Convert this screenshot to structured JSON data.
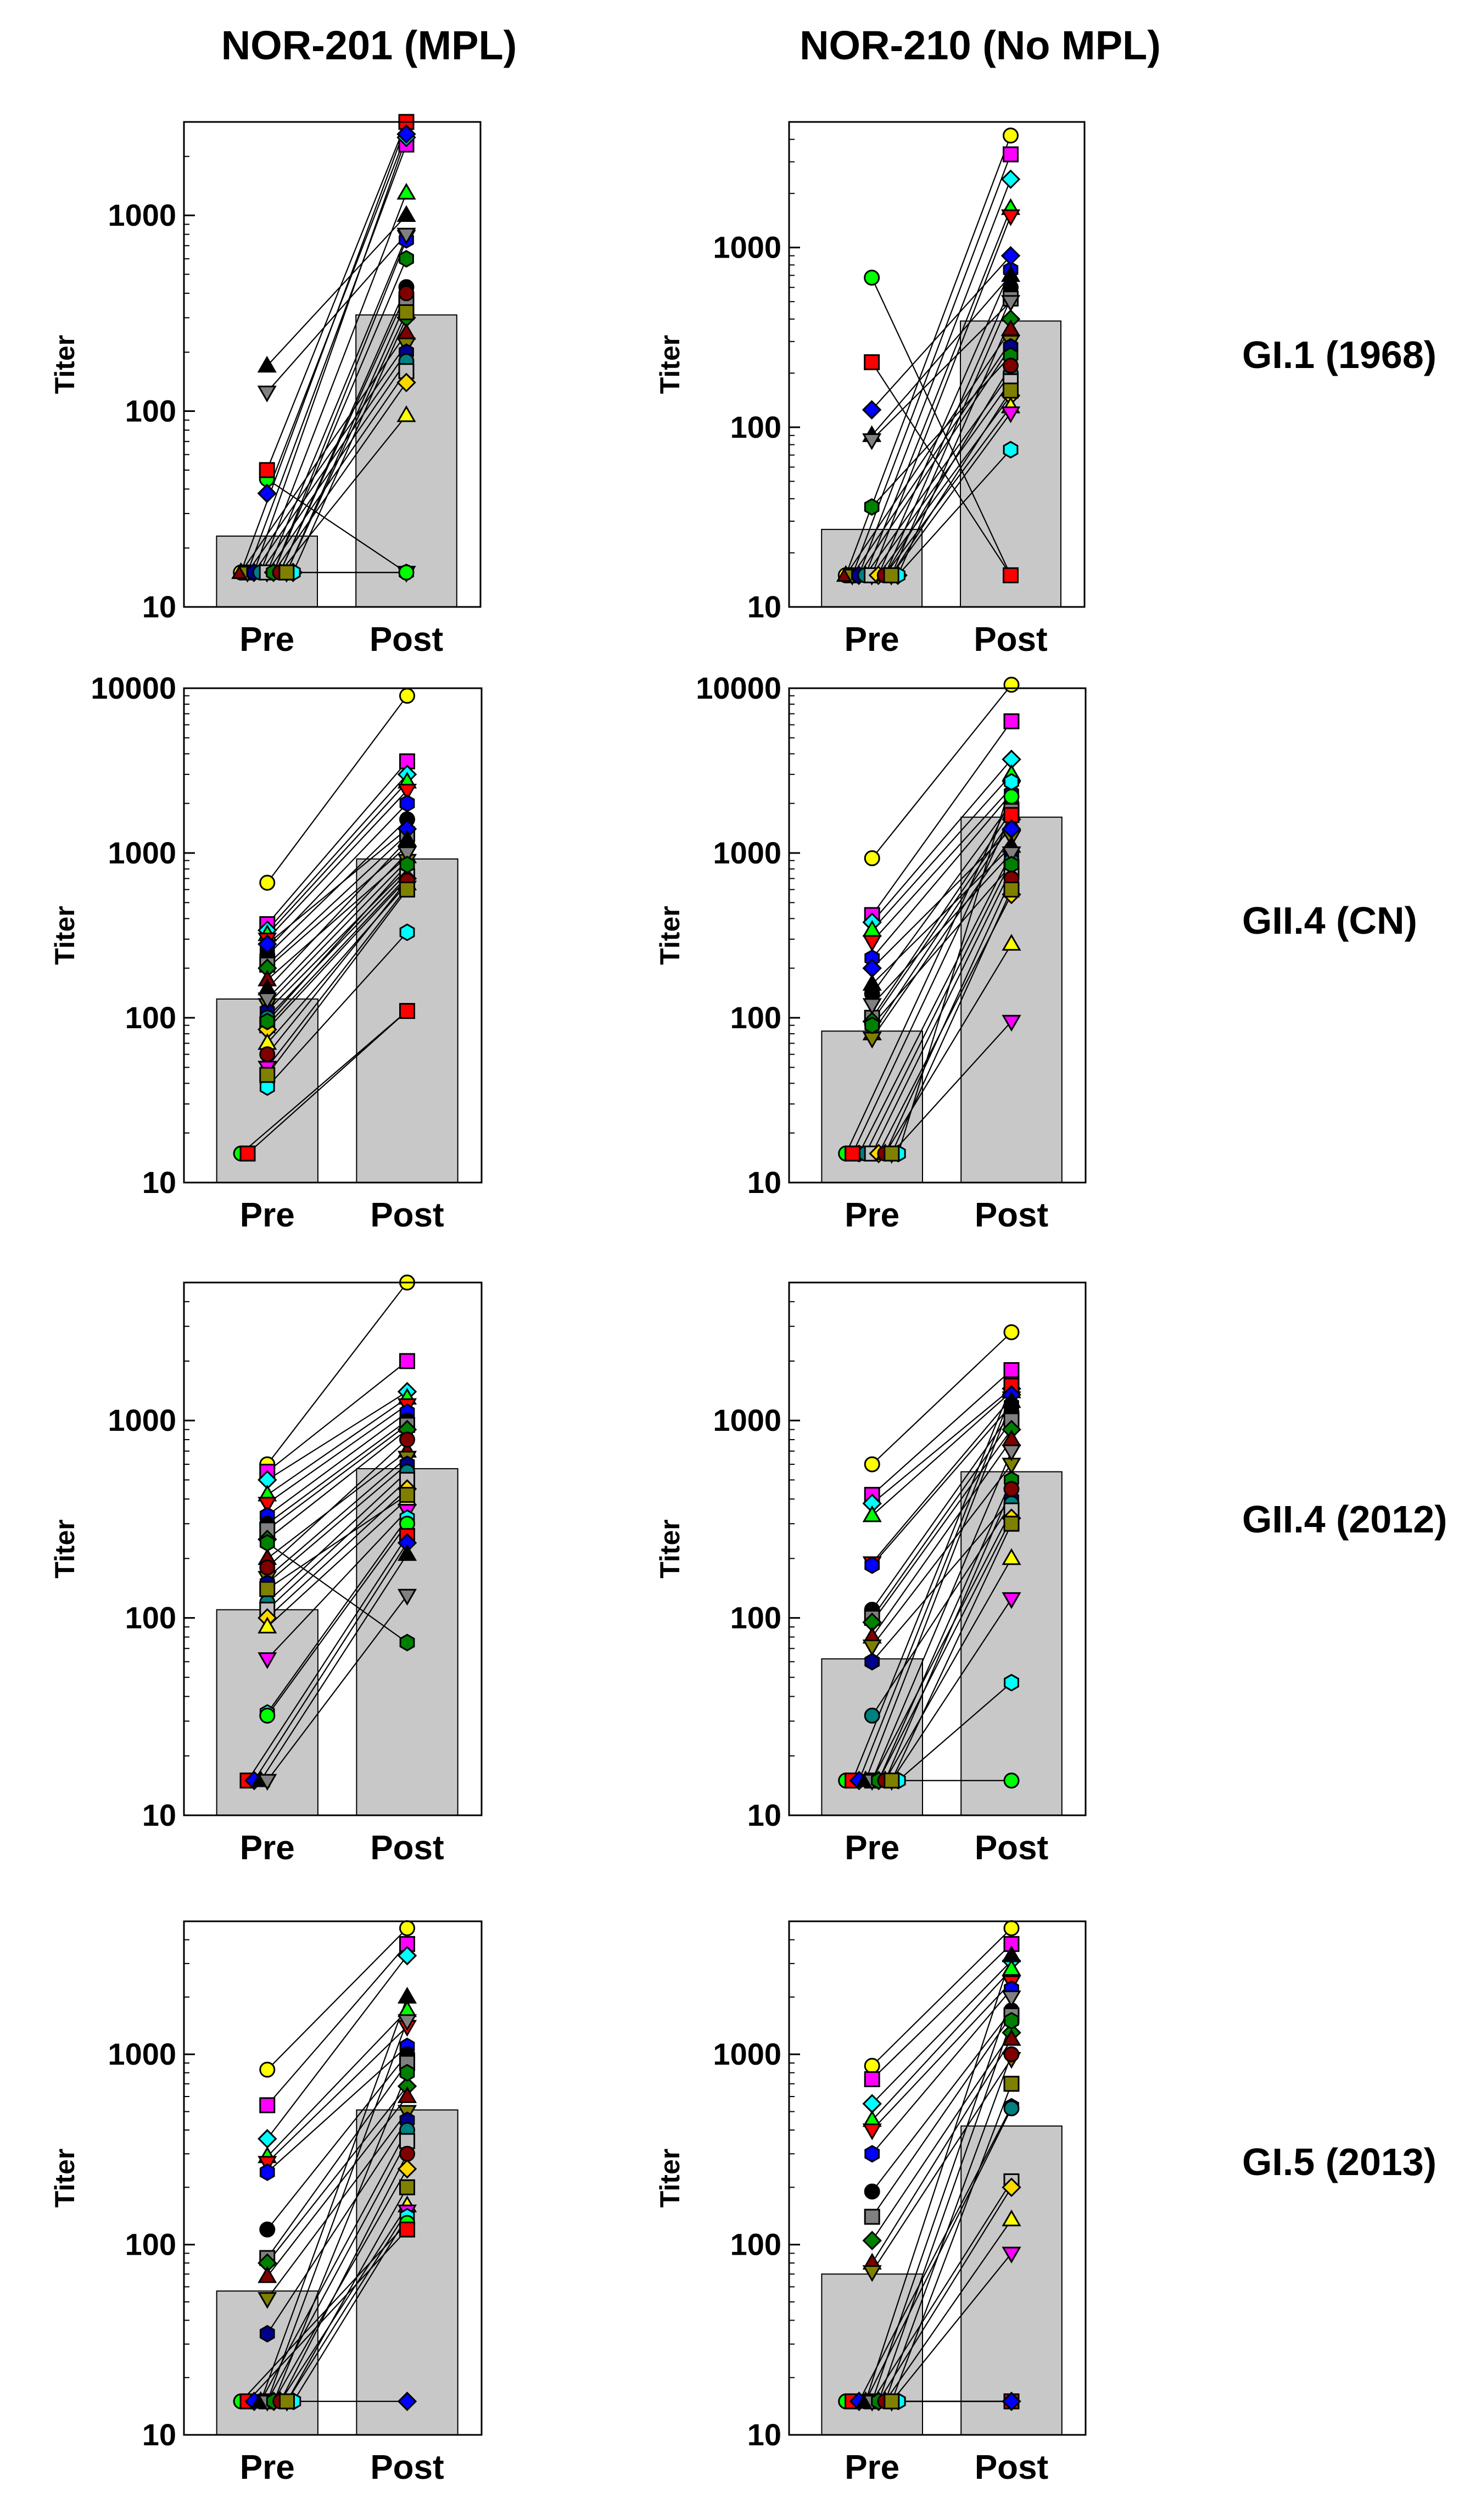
{
  "figure": {
    "column_titles": [
      "NOR-201 (MPL)",
      "NOR-210 (No MPL)"
    ],
    "row_labels": [
      "GI.1 (1968)",
      "GII.4 (CN)",
      "GII.4 (2012)",
      "GI.5 (2013)"
    ]
  },
  "colors": {
    "bar": "#c8c8c8",
    "palette": [
      "#ffff00",
      "#ff00ff",
      "#00ffff",
      "#00ff00",
      "#ff0000",
      "#0000ff",
      "#000000",
      "#808080",
      "#008000",
      "#800000",
      "#808000",
      "#00008b",
      "#008080",
      "#c0c0c0",
      "#ffd700"
    ]
  },
  "chart_data": [
    {
      "id": "p11",
      "type": "bar",
      "title": "NOR-201 (MPL)",
      "row": "GI.1 (1968)",
      "ylabel": "Titer",
      "yscale": "log",
      "ylim": [
        10,
        3000
      ],
      "yticks": [
        10,
        100,
        1000
      ],
      "ytick_labels": [
        "10",
        "100",
        "1000"
      ],
      "categories": [
        "Pre",
        "Post"
      ],
      "values": [
        23,
        310
      ],
      "pre": [
        15,
        15,
        15,
        15,
        15,
        15,
        15,
        15,
        15,
        15,
        15,
        15,
        15,
        15,
        15,
        15,
        15,
        15,
        45,
        50,
        38,
        170,
        125,
        15,
        15,
        15
      ],
      "post": [
        2900,
        2300,
        2500,
        1300,
        780,
        750,
        430,
        360,
        300,
        250,
        220,
        200,
        180,
        160,
        140,
        95,
        15,
        15,
        15,
        3000,
        2600,
        1000,
        800,
        600,
        400,
        320
      ]
    },
    {
      "id": "p12",
      "type": "bar",
      "title": "NOR-210 (No MPL)",
      "row": "GI.1 (1968)",
      "ylabel": "Titer",
      "yscale": "log",
      "ylim": [
        10,
        5000
      ],
      "yticks": [
        10,
        100,
        1000
      ],
      "ytick_labels": [
        "10",
        "100",
        "1000"
      ],
      "categories": [
        "Pre",
        "Post"
      ],
      "values": [
        27,
        390
      ],
      "pre": [
        15,
        15,
        15,
        15,
        15,
        15,
        15,
        15,
        15,
        15,
        15,
        15,
        15,
        15,
        15,
        15,
        15,
        15,
        680,
        230,
        125,
        90,
        85,
        36,
        15,
        15
      ],
      "post": [
        4200,
        3300,
        2400,
        1650,
        1500,
        750,
        600,
        520,
        400,
        350,
        300,
        280,
        200,
        180,
        150,
        130,
        120,
        75,
        15,
        15,
        900,
        700,
        500,
        250,
        220,
        160
      ]
    },
    {
      "id": "p21",
      "type": "bar",
      "title": "NOR-201 (MPL)",
      "row": "GII.4 (CN)",
      "ylabel": "Titer",
      "yscale": "log",
      "ylim": [
        10,
        10000
      ],
      "yticks": [
        10,
        100,
        1000,
        10000
      ],
      "ytick_labels": [
        "10",
        "100",
        "1000",
        "10000"
      ],
      "categories": [
        "Pre",
        "Post"
      ],
      "values": [
        130,
        920
      ],
      "pre": [
        660,
        370,
        340,
        320,
        300,
        260,
        240,
        210,
        200,
        170,
        120,
        110,
        100,
        90,
        85,
        70,
        50,
        38,
        15,
        15,
        280,
        150,
        130,
        95,
        60,
        45
      ],
      "post": [
        9000,
        3600,
        3000,
        2700,
        2400,
        2000,
        1600,
        1300,
        1100,
        950,
        900,
        800,
        760,
        720,
        700,
        650,
        620,
        330,
        110,
        110,
        1400,
        1200,
        1000,
        850,
        680,
        600
      ]
    },
    {
      "id": "p22",
      "type": "bar",
      "title": "NOR-210 (No MPL)",
      "row": "GII.4 (CN)",
      "ylabel": "Titer",
      "yscale": "log",
      "ylim": [
        10,
        10000
      ],
      "yticks": [
        10,
        100,
        1000,
        10000
      ],
      "ytick_labels": [
        "10",
        "100",
        "1000",
        "10000"
      ],
      "categories": [
        "Pre",
        "Post"
      ],
      "values": [
        83,
        1650
      ],
      "pre": [
        930,
        420,
        380,
        340,
        290,
        230,
        140,
        100,
        95,
        80,
        75,
        15,
        15,
        15,
        15,
        15,
        15,
        15,
        15,
        15,
        200,
        160,
        120,
        90,
        15,
        15
      ],
      "post": [
        10500,
        6300,
        3700,
        3000,
        2500,
        2300,
        2000,
        1800,
        1600,
        1500,
        1250,
        1000,
        900,
        800,
        560,
        280,
        95,
        2700,
        2200,
        1700,
        1400,
        1100,
        1000,
        850,
        700,
        600
      ]
    },
    {
      "id": "p31",
      "type": "bar",
      "title": "NOR-201 (MPL)",
      "row": "GII.4 (2012)",
      "ylabel": "Titer",
      "yscale": "log",
      "ylim": [
        10,
        5000
      ],
      "yticks": [
        10,
        100,
        1000
      ],
      "ytick_labels": [
        "10",
        "100",
        "1000"
      ],
      "categories": [
        "Pre",
        "Post"
      ],
      "values": [
        110,
        570
      ],
      "pre": [
        600,
        550,
        500,
        420,
        380,
        330,
        300,
        280,
        250,
        200,
        160,
        150,
        120,
        110,
        100,
        90,
        62,
        33,
        32,
        15,
        15,
        15,
        15,
        240,
        180,
        140
      ],
      "post": [
        5000,
        2000,
        1400,
        1300,
        1200,
        1100,
        1000,
        950,
        900,
        700,
        650,
        600,
        550,
        500,
        450,
        400,
        350,
        320,
        300,
        260,
        240,
        210,
        130,
        75,
        800,
        420
      ]
    },
    {
      "id": "p32",
      "type": "bar",
      "title": "NOR-210 (No MPL)",
      "row": "GII.4 (2012)",
      "ylabel": "Titer",
      "yscale": "log",
      "ylim": [
        10,
        5000
      ],
      "yticks": [
        10,
        100,
        1000
      ],
      "ytick_labels": [
        "10",
        "100",
        "1000"
      ],
      "categories": [
        "Pre",
        "Post"
      ],
      "values": [
        62,
        550
      ],
      "pre": [
        600,
        420,
        380,
        330,
        190,
        185,
        110,
        100,
        95,
        80,
        72,
        60,
        32,
        15,
        15,
        15,
        15,
        15,
        15,
        15,
        15,
        15,
        15,
        15,
        15,
        15
      ],
      "post": [
        2800,
        1800,
        1450,
        1400,
        1300,
        1200,
        1100,
        1000,
        900,
        800,
        600,
        400,
        380,
        350,
        320,
        200,
        125,
        47,
        15,
        1500,
        1350,
        1250,
        700,
        500,
        450,
        300
      ]
    },
    {
      "id": "p41",
      "type": "bar",
      "title": "NOR-201 (MPL)",
      "row": "GI.5 (2013)",
      "ylabel": "Titer",
      "yscale": "log",
      "ylim": [
        10,
        5000
      ],
      "yticks": [
        10,
        100,
        1000
      ],
      "ytick_labels": [
        "10",
        "100",
        "1000"
      ],
      "categories": [
        "Pre",
        "Post"
      ],
      "values": [
        57,
        510
      ],
      "pre": [
        830,
        540,
        360,
        290,
        270,
        240,
        120,
        85,
        80,
        68,
        52,
        34,
        15,
        15,
        15,
        15,
        15,
        15,
        15,
        15,
        15,
        15,
        15,
        15,
        15,
        15
      ],
      "post": [
        4600,
        3800,
        3300,
        1700,
        1400,
        1100,
        1000,
        900,
        680,
        600,
        500,
        450,
        400,
        350,
        250,
        160,
        150,
        140,
        130,
        120,
        15,
        2000,
        1500,
        800,
        300,
        200
      ]
    },
    {
      "id": "p42",
      "type": "bar",
      "title": "NOR-210 (No MPL)",
      "row": "GI.5 (2013)",
      "ylabel": "Titer",
      "yscale": "log",
      "ylim": [
        10,
        5000
      ],
      "yticks": [
        10,
        100,
        1000
      ],
      "ytick_labels": [
        "10",
        "100",
        "1000"
      ],
      "categories": [
        "Pre",
        "Post"
      ],
      "values": [
        70,
        420
      ],
      "pre": [
        870,
        740,
        550,
        450,
        400,
        300,
        190,
        140,
        105,
        80,
        72,
        15,
        15,
        15,
        15,
        15,
        15,
        15,
        15,
        15,
        15,
        15,
        15,
        15,
        15,
        15
      ],
      "post": [
        4600,
        3800,
        3100,
        2800,
        2400,
        2200,
        1700,
        1600,
        1300,
        1200,
        950,
        530,
        520,
        215,
        200,
        135,
        90,
        15,
        15,
        15,
        15,
        3300,
        2000,
        1500,
        1000,
        700
      ]
    }
  ]
}
